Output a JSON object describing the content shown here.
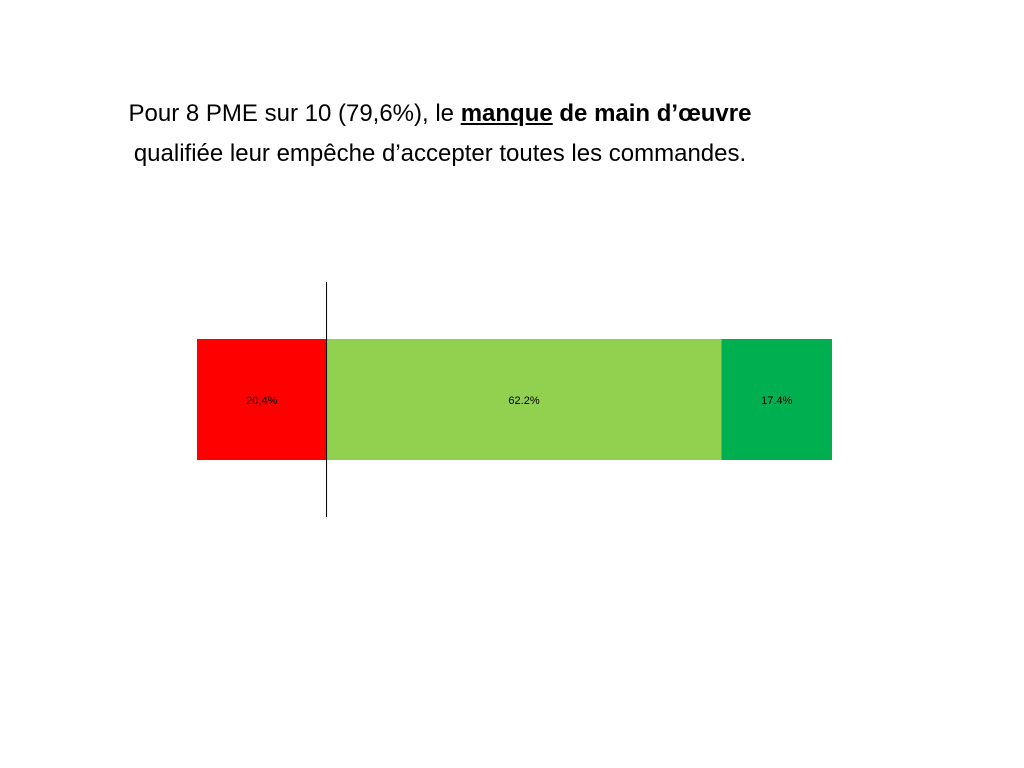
{
  "headline": {
    "line1_prefix": "Pour 8 PME sur 10 (79,6%), le ",
    "line1_underlined_bold": "manque",
    "line1_space": " ",
    "line1_bold": "de main d’œuvre",
    "line2": "qualifiée leur empêche d’accepter toutes les commandes."
  },
  "chart_data": {
    "type": "bar",
    "orientation": "horizontal-stacked",
    "categories": [
      ""
    ],
    "series": [
      {
        "values": [
          20.4
        ],
        "label": "20,4%",
        "color": "#ff0000"
      },
      {
        "values": [
          62.2
        ],
        "label": "62.2%",
        "color": "#92d050"
      },
      {
        "values": [
          17.4
        ],
        "label": "17.4%",
        "color": "#00b050"
      }
    ],
    "xlim": [
      0,
      100
    ],
    "grid": false,
    "legend": "none"
  }
}
